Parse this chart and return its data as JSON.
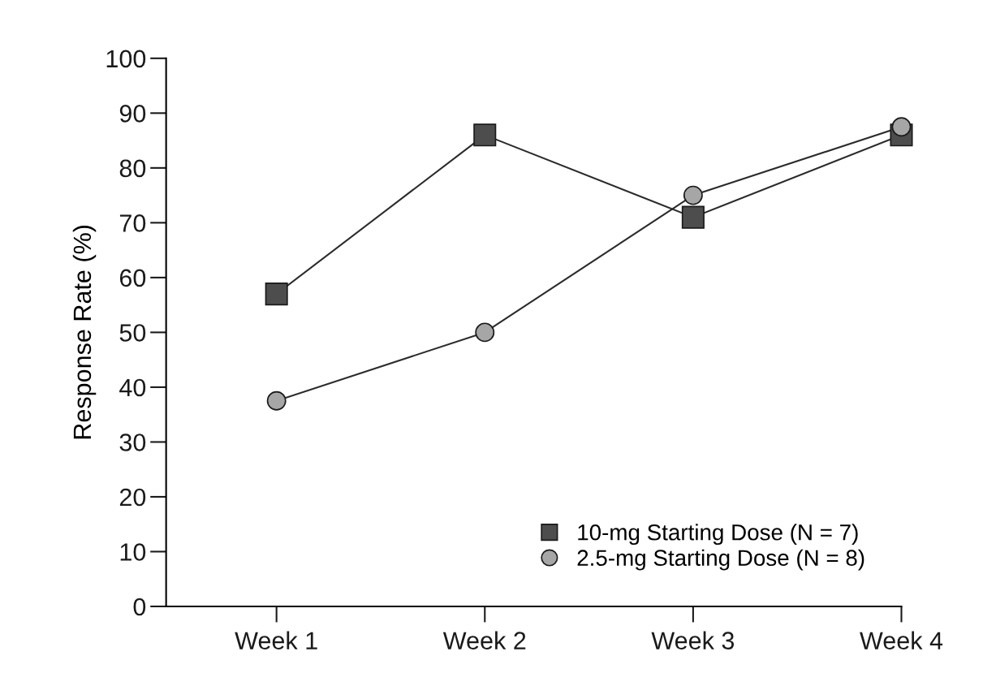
{
  "chart_data": {
    "type": "line",
    "ylabel": "Response Rate (%)",
    "categories": [
      "Week 1",
      "Week 2",
      "Week 3",
      "Week 4"
    ],
    "series": [
      {
        "name": "10-mg Starting Dose (N = 7)",
        "color": "#4d4d4d",
        "marker": "square",
        "values": [
          57,
          86,
          71,
          86
        ]
      },
      {
        "name": "2.5-mg Starting Dose (N = 8)",
        "color": "#a6a6a6",
        "marker": "circle",
        "values": [
          37.5,
          50,
          75,
          87.5
        ]
      }
    ],
    "ylim": [
      0,
      100
    ],
    "yticks": [
      0,
      10,
      20,
      30,
      40,
      50,
      60,
      70,
      80,
      90,
      100
    ],
    "grid": false,
    "legend": "bottom right",
    "line_style": "solid"
  }
}
